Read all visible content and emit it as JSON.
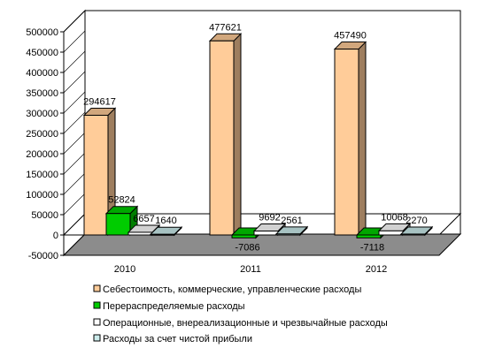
{
  "chart_data": {
    "type": "bar",
    "categories": [
      "2010",
      "2011",
      "2012"
    ],
    "series": [
      {
        "name": "Себестоимость, коммерческие, управленческие расходы",
        "values": [
          294617,
          477621,
          457490
        ],
        "labels": [
          "294617",
          "477621",
          "457490"
        ],
        "color": "#FFCC99"
      },
      {
        "name": "Перераспределяемые расходы",
        "values": [
          52824,
          -7086,
          -7118
        ],
        "labels": [
          "52824",
          "-7086",
          "-7118"
        ],
        "color": "#00CC00"
      },
      {
        "name": "Операционные, внереализационные и чрезвычайные расходы",
        "values": [
          6657,
          9692,
          10068
        ],
        "labels": [
          "6657",
          "9692",
          "10068"
        ],
        "color": "#FFFFFF"
      },
      {
        "name": "Расходы за счет чистой прибыли",
        "values": [
          1640,
          2561,
          2270
        ],
        "labels": [
          "1640",
          "2561",
          "2270"
        ],
        "color": "#CCECEC"
      }
    ],
    "y_ticks": [
      "-50000",
      "0",
      "50000",
      "100000",
      "150000",
      "200000",
      "250000",
      "300000",
      "350000",
      "400000",
      "450000",
      "500000"
    ],
    "ylim": [
      -50000,
      500000
    ],
    "grid": false,
    "legend_position": "bottom",
    "three_d": true
  }
}
